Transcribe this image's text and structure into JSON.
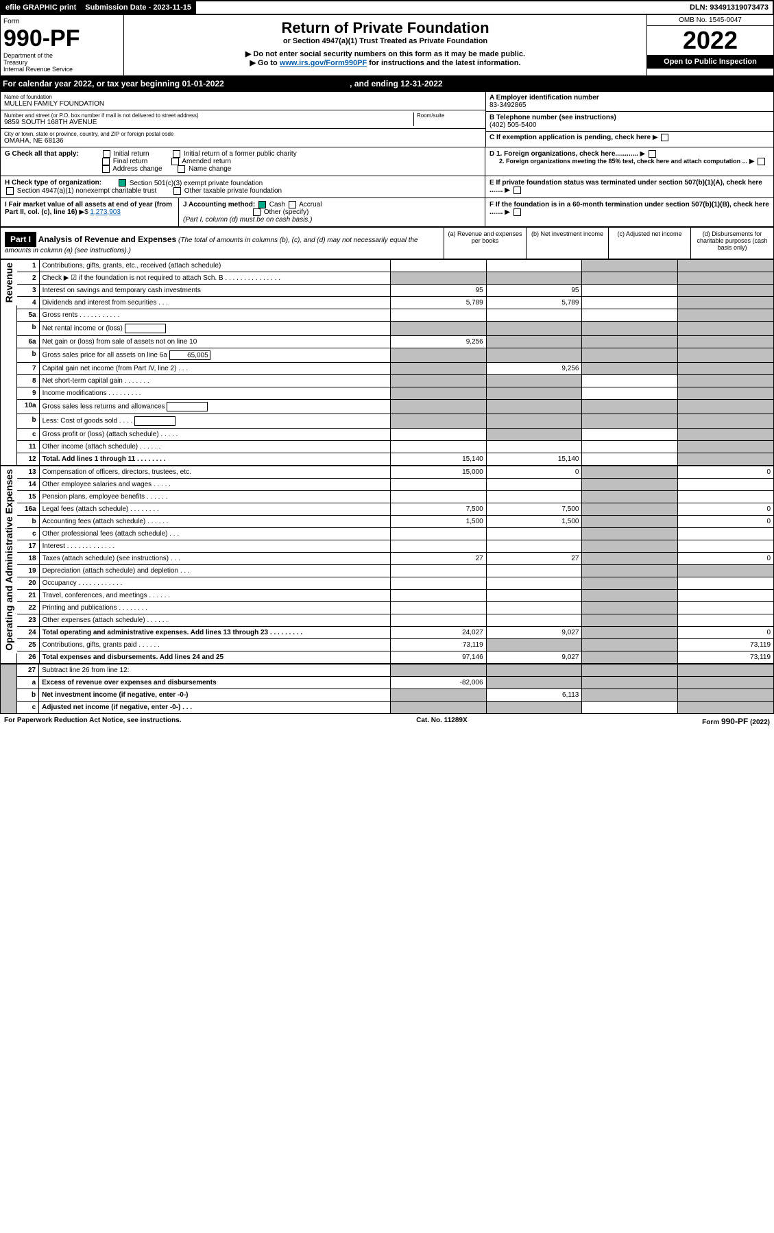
{
  "header": {
    "efile": "efile GRAPHIC print",
    "subdate_lbl": "Submission Date - 2023-11-15",
    "dln": "DLN: 93491319073473"
  },
  "form": {
    "form_lbl": "Form",
    "number": "990-PF",
    "dept1": "Department of the",
    "dept2": "Treasury",
    "dept3": "Internal Revenue Service",
    "title": "Return of Private Foundation",
    "subtitle": "or Section 4947(a)(1) Trust Treated as Private Foundation",
    "note1": "▶ Do not enter social security numbers on this form as it may be made public.",
    "note2": "▶ Go to ",
    "note2_link": "www.irs.gov/Form990PF",
    "note2_end": " for instructions and the latest information.",
    "omb": "OMB No. 1545-0047",
    "year": "2022",
    "open": "Open to Public Inspection"
  },
  "cal": "For calendar year 2022, or tax year beginning 01-01-2022",
  "cal_end": ", and ending 12-31-2022",
  "entity": {
    "name_lbl": "Name of foundation",
    "name": "MULLEN FAMILY FOUNDATION",
    "addr_lbl": "Number and street (or P.O. box number if mail is not delivered to street address)",
    "addr": "9859 SOUTH 168TH AVENUE",
    "room_lbl": "Room/suite",
    "city_lbl": "City or town, state or province, country, and ZIP or foreign postal code",
    "city": "OMAHA, NE  68136",
    "a_lbl": "A Employer identification number",
    "a_val": "83-3492865",
    "b_lbl": "B Telephone number (see instructions)",
    "b_val": "(402) 505-5400",
    "c_lbl": "C If exemption application is pending, check here",
    "d1": "D 1. Foreign organizations, check here............",
    "d2": "2. Foreign organizations meeting the 85% test, check here and attach computation ...",
    "e": "E  If private foundation status was terminated under section 507(b)(1)(A), check here .......",
    "f": "F  If the foundation is in a 60-month termination under section 507(b)(1)(B), check here .......",
    "g_lbl": "G Check all that apply:",
    "g_opts": [
      "Initial return",
      "Final return",
      "Address change",
      "Initial return of a former public charity",
      "Amended return",
      "Name change"
    ],
    "h_lbl": "H Check type of organization:",
    "h1": "Section 501(c)(3) exempt private foundation",
    "h2": "Section 4947(a)(1) nonexempt charitable trust",
    "h3": "Other taxable private foundation",
    "i_lbl": "I Fair market value of all assets at end of year (from Part II, col. (c), line 16)",
    "i_val": "1,273,903",
    "j_lbl": "J Accounting method:",
    "j_opts": [
      "Cash",
      "Accrual",
      "Other (specify)"
    ],
    "j_note": "(Part I, column (d) must be on cash basis.)"
  },
  "part1": {
    "label": "Part I",
    "title": "Analysis of Revenue and Expenses",
    "sub": " (The total of amounts in columns (b), (c), and (d) may not necessarily equal the amounts in column (a) (see instructions).)",
    "col_a": "(a)   Revenue and expenses per books",
    "col_b": "(b)  Net investment income",
    "col_c": "(c)  Adjusted net income",
    "col_d": "(d)  Disbursements for charitable purposes (cash basis only)"
  },
  "sections": {
    "revenue": "Revenue",
    "opex": "Operating and Administrative Expenses"
  },
  "rows": [
    {
      "n": "1",
      "d": "Contributions, gifts, grants, etc., received (attach schedule)",
      "a": "",
      "b": "",
      "c": "g",
      "dd": "g"
    },
    {
      "n": "2",
      "d": "Check ▶ ☑ if the foundation is not required to attach Sch. B   .   .   .   .   .   .   .   .   .   .   .   .   .   .   .",
      "a": "g",
      "b": "g",
      "c": "g",
      "dd": "g"
    },
    {
      "n": "3",
      "d": "Interest on savings and temporary cash investments",
      "a": "95",
      "b": "95",
      "c": "",
      "dd": "g"
    },
    {
      "n": "4",
      "d": "Dividends and interest from securities   .   .   .",
      "a": "5,789",
      "b": "5,789",
      "c": "",
      "dd": "g"
    },
    {
      "n": "5a",
      "d": "Gross rents   .   .   .   .   .   .   .   .   .   .   .",
      "a": "",
      "b": "",
      "c": "",
      "dd": "g"
    },
    {
      "n": "b",
      "d": "Net rental income or (loss)  ",
      "a": "g",
      "b": "g",
      "c": "g",
      "dd": "g",
      "inner": true
    },
    {
      "n": "6a",
      "d": "Net gain or (loss) from sale of assets not on line 10",
      "a": "9,256",
      "b": "g",
      "c": "g",
      "dd": "g"
    },
    {
      "n": "b",
      "d": "Gross sales price for all assets on line 6a",
      "a": "g",
      "b": "g",
      "c": "g",
      "dd": "g",
      "inner": true,
      "iv": "65,005"
    },
    {
      "n": "7",
      "d": "Capital gain net income (from Part IV, line 2)   .   .   .",
      "a": "g",
      "b": "9,256",
      "c": "g",
      "dd": "g"
    },
    {
      "n": "8",
      "d": "Net short-term capital gain   .   .   .   .   .   .   .",
      "a": "g",
      "b": "g",
      "c": "",
      "dd": "g"
    },
    {
      "n": "9",
      "d": "Income modifications   .   .   .   .   .   .   .   .   .",
      "a": "g",
      "b": "g",
      "c": "",
      "dd": "g"
    },
    {
      "n": "10a",
      "d": "Gross sales less returns and allowances",
      "a": "g",
      "b": "g",
      "c": "g",
      "dd": "g",
      "inner": true
    },
    {
      "n": "b",
      "d": "Less: Cost of goods sold   .   .   .   .",
      "a": "g",
      "b": "g",
      "c": "g",
      "dd": "g",
      "inner": true
    },
    {
      "n": "c",
      "d": "Gross profit or (loss) (attach schedule)   .   .   .   .   .",
      "a": "",
      "b": "g",
      "c": "",
      "dd": "g"
    },
    {
      "n": "11",
      "d": "Other income (attach schedule)   .   .   .   .   .   .",
      "a": "",
      "b": "",
      "c": "",
      "dd": "g"
    },
    {
      "n": "12",
      "d": "Total. Add lines 1 through 11   .   .   .   .   .   .   .   .",
      "a": "15,140",
      "b": "15,140",
      "c": "",
      "dd": "g",
      "bold": true
    }
  ],
  "exp_rows": [
    {
      "n": "13",
      "d": "Compensation of officers, directors, trustees, etc.",
      "a": "15,000",
      "b": "0",
      "c": "g",
      "dd": "0"
    },
    {
      "n": "14",
      "d": "Other employee salaries and wages   .   .   .   .   .",
      "a": "",
      "b": "",
      "c": "g",
      "dd": ""
    },
    {
      "n": "15",
      "d": "Pension plans, employee benefits   .   .   .   .   .   .",
      "a": "",
      "b": "",
      "c": "g",
      "dd": ""
    },
    {
      "n": "16a",
      "d": "Legal fees (attach schedule)   .   .   .   .   .   .   .   .",
      "a": "7,500",
      "b": "7,500",
      "c": "g",
      "dd": "0"
    },
    {
      "n": "b",
      "d": "Accounting fees (attach schedule)   .   .   .   .   .   .",
      "a": "1,500",
      "b": "1,500",
      "c": "g",
      "dd": "0"
    },
    {
      "n": "c",
      "d": "Other professional fees (attach schedule)   .   .   .",
      "a": "",
      "b": "",
      "c": "g",
      "dd": ""
    },
    {
      "n": "17",
      "d": "Interest   .   .   .   .   .   .   .   .   .   .   .   .   .",
      "a": "",
      "b": "",
      "c": "g",
      "dd": ""
    },
    {
      "n": "18",
      "d": "Taxes (attach schedule) (see instructions)   .   .   .",
      "a": "27",
      "b": "27",
      "c": "g",
      "dd": "0"
    },
    {
      "n": "19",
      "d": "Depreciation (attach schedule) and depletion   .   .   .",
      "a": "",
      "b": "",
      "c": "g",
      "dd": "g"
    },
    {
      "n": "20",
      "d": "Occupancy   .   .   .   .   .   .   .   .   .   .   .   .",
      "a": "",
      "b": "",
      "c": "g",
      "dd": ""
    },
    {
      "n": "21",
      "d": "Travel, conferences, and meetings   .   .   .   .   .   .",
      "a": "",
      "b": "",
      "c": "g",
      "dd": ""
    },
    {
      "n": "22",
      "d": "Printing and publications   .   .   .   .   .   .   .   .",
      "a": "",
      "b": "",
      "c": "g",
      "dd": ""
    },
    {
      "n": "23",
      "d": "Other expenses (attach schedule)   .   .   .   .   .   .",
      "a": "",
      "b": "",
      "c": "g",
      "dd": ""
    },
    {
      "n": "24",
      "d": "Total operating and administrative expenses. Add lines 13 through 23   .   .   .   .   .   .   .   .   .",
      "a": "24,027",
      "b": "9,027",
      "c": "g",
      "dd": "0",
      "bold": true
    },
    {
      "n": "25",
      "d": "Contributions, gifts, grants paid   .   .   .   .   .   .",
      "a": "73,119",
      "b": "g",
      "c": "g",
      "dd": "73,119"
    },
    {
      "n": "26",
      "d": "Total expenses and disbursements. Add lines 24 and 25",
      "a": "97,146",
      "b": "9,027",
      "c": "g",
      "dd": "73,119",
      "bold": true
    }
  ],
  "net_rows": [
    {
      "n": "27",
      "d": "Subtract line 26 from line 12:",
      "a": "g",
      "b": "g",
      "c": "g",
      "dd": "g"
    },
    {
      "n": "a",
      "d": "Excess of revenue over expenses and disbursements",
      "a": "-82,006",
      "b": "g",
      "c": "g",
      "dd": "g",
      "bold": true
    },
    {
      "n": "b",
      "d": "Net investment income (if negative, enter -0-)",
      "a": "g",
      "b": "6,113",
      "c": "g",
      "dd": "g",
      "bold": true
    },
    {
      "n": "c",
      "d": "Adjusted net income (if negative, enter -0-)   .   .   .",
      "a": "g",
      "b": "g",
      "c": "",
      "dd": "g",
      "bold": true
    }
  ],
  "footer": {
    "left": "For Paperwork Reduction Act Notice, see instructions.",
    "mid": "Cat. No. 11289X",
    "right": "Form 990-PF (2022)"
  }
}
